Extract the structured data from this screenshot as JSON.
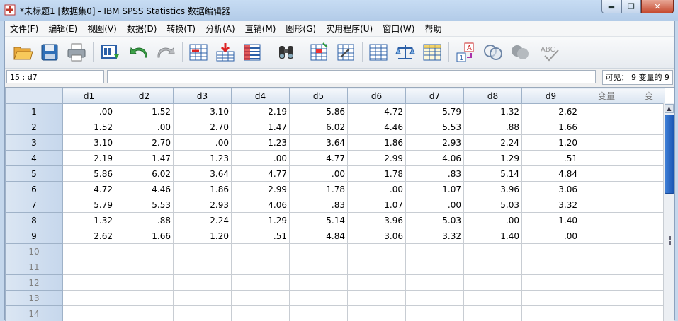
{
  "window": {
    "title": "*未标题1 [数据集0] - IBM SPSS Statistics 数据编辑器",
    "minimize": "▬",
    "maximize": "❐",
    "close": "✕"
  },
  "menu": [
    "文件(F)",
    "编辑(E)",
    "视图(V)",
    "数据(D)",
    "转换(T)",
    "分析(A)",
    "直销(M)",
    "图形(G)",
    "实用程序(U)",
    "窗口(W)",
    "帮助"
  ],
  "toolbar": {
    "icons": [
      "open-icon",
      "save-icon",
      "print-icon",
      "dialog-recall-icon",
      "undo-icon",
      "redo-icon",
      "go-to-case-icon",
      "go-to-variable-icon",
      "variables-icon",
      "find-icon",
      "insert-cases-icon",
      "insert-variable-icon",
      "split-file-icon",
      "weight-cases-icon",
      "select-cases-icon",
      "value-labels-icon",
      "use-sets-icon",
      "show-all-variables-icon",
      "spell-check-icon"
    ],
    "value_labels_text": "A",
    "value_labels_num": "1",
    "spell_text": "ABC"
  },
  "refbar": {
    "cell": "15 : d7",
    "value": "",
    "visible": "可见： 9 变量的 9"
  },
  "grid": {
    "columns": [
      "d1",
      "d2",
      "d3",
      "d4",
      "d5",
      "d6",
      "d7",
      "d8",
      "d9",
      "变量",
      "变"
    ],
    "rows": [
      {
        "n": "1",
        "v": [
          ".00",
          "1.52",
          "3.10",
          "2.19",
          "5.86",
          "4.72",
          "5.79",
          "1.32",
          "2.62"
        ]
      },
      {
        "n": "2",
        "v": [
          "1.52",
          ".00",
          "2.70",
          "1.47",
          "6.02",
          "4.46",
          "5.53",
          ".88",
          "1.66"
        ]
      },
      {
        "n": "3",
        "v": [
          "3.10",
          "2.70",
          ".00",
          "1.23",
          "3.64",
          "1.86",
          "2.93",
          "2.24",
          "1.20"
        ]
      },
      {
        "n": "4",
        "v": [
          "2.19",
          "1.47",
          "1.23",
          ".00",
          "4.77",
          "2.99",
          "4.06",
          "1.29",
          ".51"
        ]
      },
      {
        "n": "5",
        "v": [
          "5.86",
          "6.02",
          "3.64",
          "4.77",
          ".00",
          "1.78",
          ".83",
          "5.14",
          "4.84"
        ]
      },
      {
        "n": "6",
        "v": [
          "4.72",
          "4.46",
          "1.86",
          "2.99",
          "1.78",
          ".00",
          "1.07",
          "3.96",
          "3.06"
        ]
      },
      {
        "n": "7",
        "v": [
          "5.79",
          "5.53",
          "2.93",
          "4.06",
          ".83",
          "1.07",
          ".00",
          "5.03",
          "3.32"
        ]
      },
      {
        "n": "8",
        "v": [
          "1.32",
          ".88",
          "2.24",
          "1.29",
          "5.14",
          "3.96",
          "5.03",
          ".00",
          "1.40"
        ]
      },
      {
        "n": "9",
        "v": [
          "2.62",
          "1.66",
          "1.20",
          ".51",
          "4.84",
          "3.06",
          "3.32",
          "1.40",
          ".00"
        ]
      }
    ],
    "empty_rows": [
      "10",
      "11",
      "12",
      "13",
      "14"
    ]
  },
  "colors": {
    "title_bar": "#b9d1ea",
    "header_bg": "#d9e4f1",
    "scroll_thumb": "#2a66c4"
  }
}
